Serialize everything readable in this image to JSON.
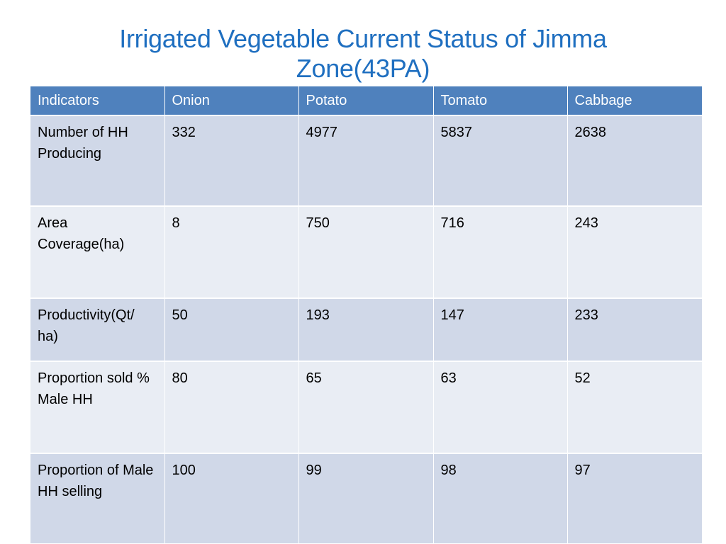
{
  "slide": {
    "title_line1": "Irrigated Vegetable Current Status  of Jimma",
    "title_line2": "Zone(43PA)"
  },
  "table": {
    "headers": [
      "Indicators",
      "Onion",
      "Potato",
      "Tomato",
      "Cabbage"
    ],
    "rows": [
      [
        "Number of HH Producing",
        "332",
        "4977",
        "5837",
        "2638"
      ],
      [
        "Area Coverage(ha)",
        "8",
        "750",
        "716",
        "243"
      ],
      [
        "Productivity(Qt/ ha)",
        "50",
        "193",
        "147",
        "233"
      ],
      [
        "Proportion sold % Male HH",
        "80",
        "65",
        "63",
        "52"
      ],
      [
        "Proportion of Male HH selling",
        "100",
        "99",
        "98",
        "97"
      ]
    ]
  },
  "colors": {
    "title": "#1f6fc0",
    "header_bg": "#4f81bd",
    "row_band_dark": "#d0d8e8",
    "row_band_light": "#e9edf4"
  }
}
